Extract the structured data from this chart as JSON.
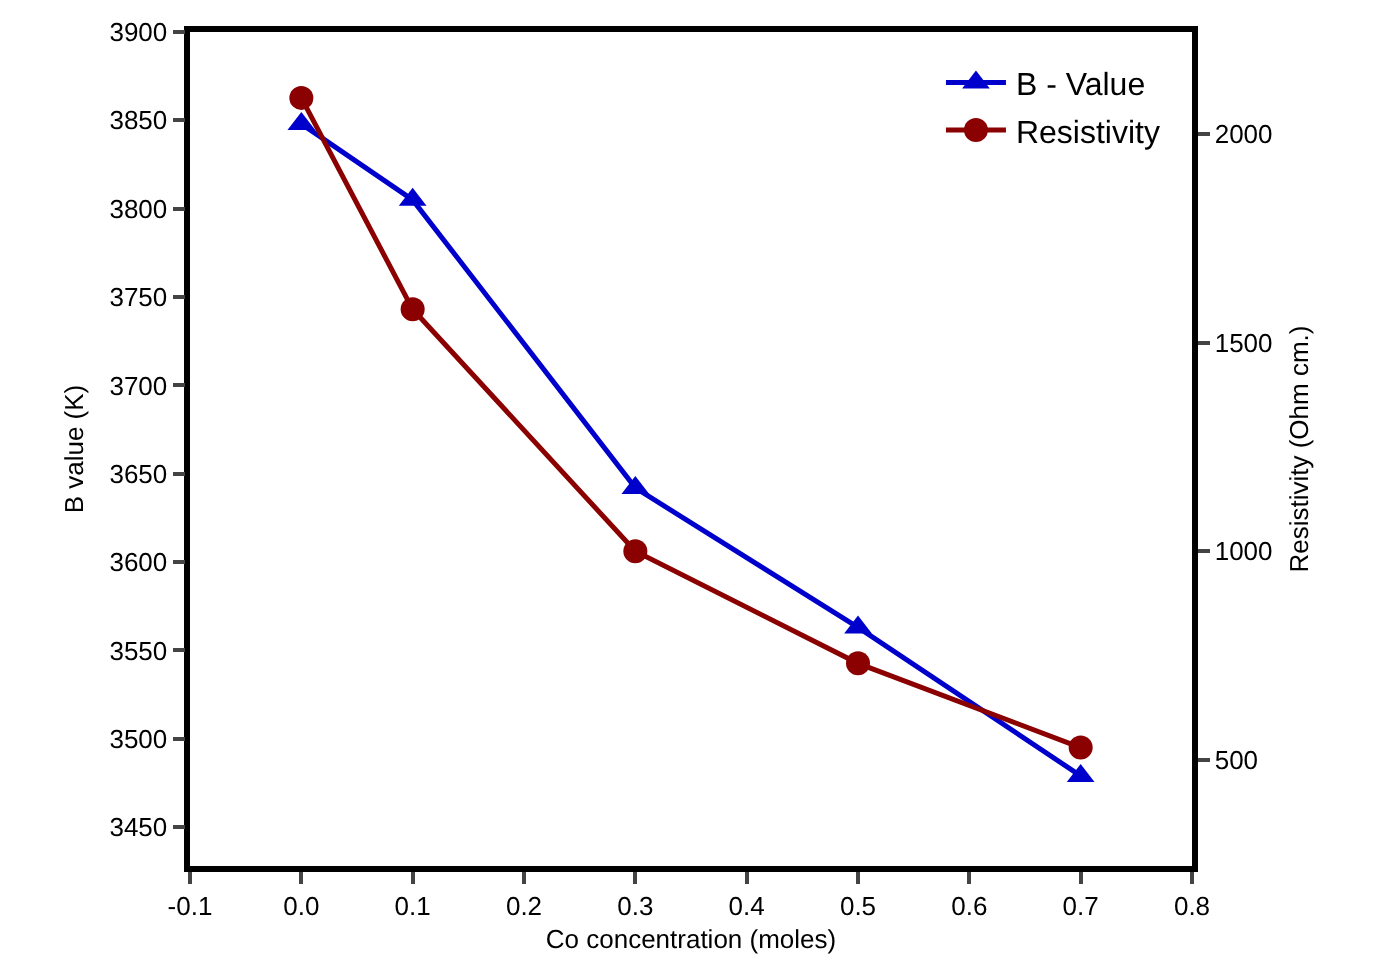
{
  "chart_data": {
    "type": "line",
    "xlabel": "Co concentration (moles)",
    "ylabel": "B value (K)",
    "y2label": "Resistivity (Ohm cm.)",
    "x": [
      0.0,
      0.1,
      0.3,
      0.5,
      0.7
    ],
    "series": [
      {
        "name": "B - Value",
        "color": "#0000cc",
        "values": [
          3848,
          3805,
          3642,
          3563,
          3479
        ],
        "marker": "triangle"
      },
      {
        "name": "Resistivity",
        "color": "#8b0000",
        "values": [
          2087,
          1580,
          1000,
          731,
          529
        ],
        "marker": "circle",
        "axis": "y2"
      }
    ],
    "xlim": [
      -0.1,
      0.8
    ],
    "xticks": [
      -0.1,
      {
        "value": 0,
        "label": "0.0"
      },
      0.1,
      0.2,
      0.3,
      0.4,
      0.5,
      0.6,
      0.7,
      0.8
    ],
    "ylim": [
      3428,
      3900
    ],
    "yticks": [
      3450,
      3500,
      3550,
      3600,
      3650,
      3700,
      3750,
      3800,
      3850,
      3900
    ],
    "y2lim": [
      245,
      2245
    ],
    "y2ticks": [
      500,
      1000,
      1500,
      2000
    ],
    "grid": false,
    "legend": "top right",
    "line_style": "solid"
  }
}
